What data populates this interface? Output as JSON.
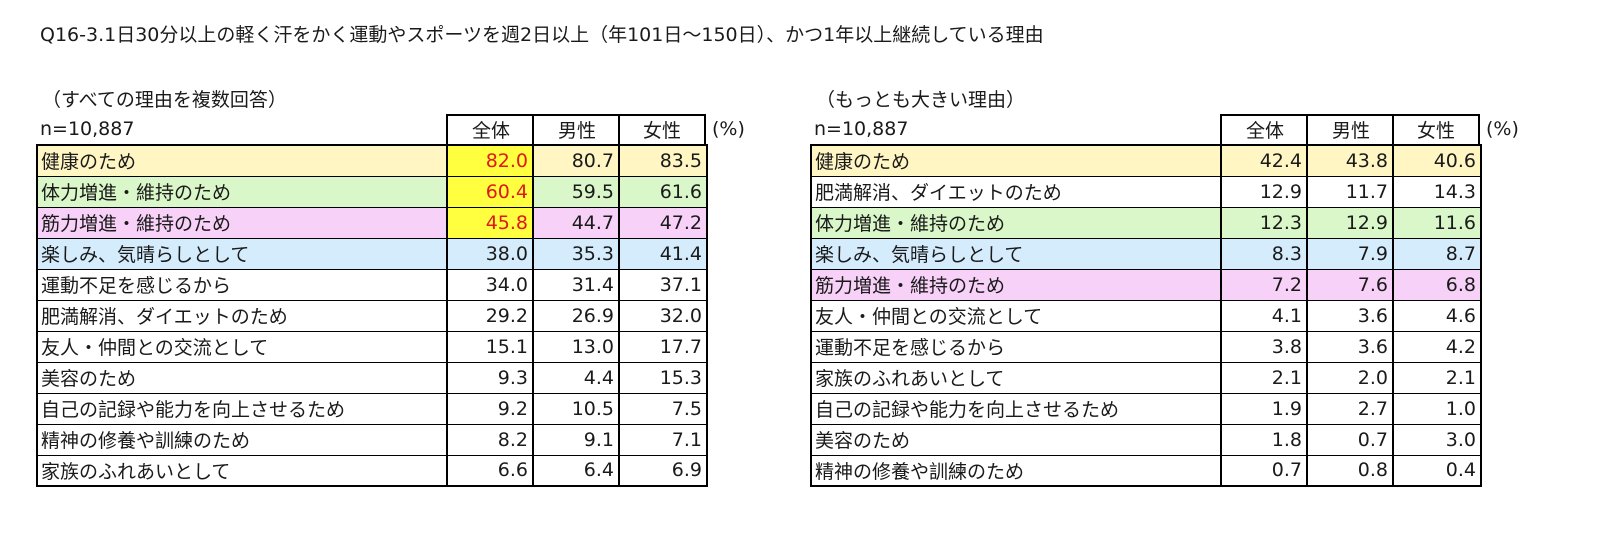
{
  "title": "Q16-3.1日30分以上の軽く汗をかく運動やスポーツを週2日以上（年101日～150日）、かつ1年以上継続している理由",
  "colors": {
    "yellow_row": "#fff6c4",
    "green_row": "#d9f7c8",
    "pink_row": "#f7d1f7",
    "blue_row": "#d4ecfc",
    "highlight_bg": "#ffff40",
    "highlight_text": "#e01818"
  },
  "left_table": {
    "caption": "（すべての理由を複数回答）",
    "n_label": "n=10,887",
    "headers": [
      "全体",
      "男性",
      "女性"
    ],
    "unit": "(%)",
    "rows": [
      {
        "label": "健康のため",
        "total": "82.0",
        "male": "80.7",
        "female": "83.5",
        "color": "yellow",
        "highlight_total": true
      },
      {
        "label": "体力増進・維持のため",
        "total": "60.4",
        "male": "59.5",
        "female": "61.6",
        "color": "green",
        "highlight_total": true
      },
      {
        "label": "筋力増進・維持のため",
        "total": "45.8",
        "male": "44.7",
        "female": "47.2",
        "color": "pink",
        "highlight_total": true
      },
      {
        "label": "楽しみ、気晴らしとして",
        "total": "38.0",
        "male": "35.3",
        "female": "41.4",
        "color": "blue",
        "highlight_total": false
      },
      {
        "label": "運動不足を感じるから",
        "total": "34.0",
        "male": "31.4",
        "female": "37.1",
        "color": "white",
        "highlight_total": false
      },
      {
        "label": "肥満解消、ダイエットのため",
        "total": "29.2",
        "male": "26.9",
        "female": "32.0",
        "color": "white",
        "highlight_total": false
      },
      {
        "label": "友人・仲間との交流として",
        "total": "15.1",
        "male": "13.0",
        "female": "17.7",
        "color": "white",
        "highlight_total": false
      },
      {
        "label": "美容のため",
        "total": "9.3",
        "male": "4.4",
        "female": "15.3",
        "color": "white",
        "highlight_total": false
      },
      {
        "label": "自己の記録や能力を向上させるため",
        "total": "9.2",
        "male": "10.5",
        "female": "7.5",
        "color": "white",
        "highlight_total": false
      },
      {
        "label": "精神の修養や訓練のため",
        "total": "8.2",
        "male": "9.1",
        "female": "7.1",
        "color": "white",
        "highlight_total": false
      },
      {
        "label": "家族のふれあいとして",
        "total": "6.6",
        "male": "6.4",
        "female": "6.9",
        "color": "white",
        "highlight_total": false
      }
    ]
  },
  "right_table": {
    "caption": "（もっとも大きい理由）",
    "n_label": "n=10,887",
    "headers": [
      "全体",
      "男性",
      "女性"
    ],
    "unit": "(%)",
    "rows": [
      {
        "label": "健康のため",
        "total": "42.4",
        "male": "43.8",
        "female": "40.6",
        "color": "yellow",
        "highlight_total": false
      },
      {
        "label": "肥満解消、ダイエットのため",
        "total": "12.9",
        "male": "11.7",
        "female": "14.3",
        "color": "white",
        "highlight_total": false
      },
      {
        "label": "体力増進・維持のため",
        "total": "12.3",
        "male": "12.9",
        "female": "11.6",
        "color": "green",
        "highlight_total": false
      },
      {
        "label": "楽しみ、気晴らしとして",
        "total": "8.3",
        "male": "7.9",
        "female": "8.7",
        "color": "blue",
        "highlight_total": false
      },
      {
        "label": "筋力増進・維持のため",
        "total": "7.2",
        "male": "7.6",
        "female": "6.8",
        "color": "pink",
        "highlight_total": false
      },
      {
        "label": "友人・仲間との交流として",
        "total": "4.1",
        "male": "3.6",
        "female": "4.6",
        "color": "white",
        "highlight_total": false
      },
      {
        "label": "運動不足を感じるから",
        "total": "3.8",
        "male": "3.6",
        "female": "4.2",
        "color": "white",
        "highlight_total": false
      },
      {
        "label": "家族のふれあいとして",
        "total": "2.1",
        "male": "2.0",
        "female": "2.1",
        "color": "white",
        "highlight_total": false
      },
      {
        "label": "自己の記録や能力を向上させるため",
        "total": "1.9",
        "male": "2.7",
        "female": "1.0",
        "color": "white",
        "highlight_total": false
      },
      {
        "label": "美容のため",
        "total": "1.8",
        "male": "0.7",
        "female": "3.0",
        "color": "white",
        "highlight_total": false
      },
      {
        "label": "精神の修養や訓練のため",
        "total": "0.7",
        "male": "0.8",
        "female": "0.4",
        "color": "white",
        "highlight_total": false
      }
    ]
  }
}
